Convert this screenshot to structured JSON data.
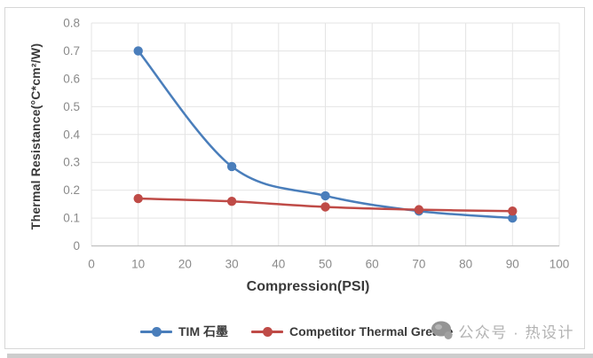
{
  "chart_data": {
    "type": "line",
    "title": "",
    "xlabel": "Compression(PSI)",
    "ylabel": "Thermal Resistance(°C*cm²/W)",
    "x": [
      10,
      30,
      50,
      70,
      90
    ],
    "series": [
      {
        "name": "TIM 石墨",
        "color": "#4a7ebb",
        "values": [
          0.7,
          0.285,
          0.18,
          0.125,
          0.1
        ]
      },
      {
        "name": "Competitor Thermal Grease",
        "color": "#bf4b47",
        "values": [
          0.17,
          0.16,
          0.14,
          0.13,
          0.125
        ]
      }
    ],
    "xlim": [
      0,
      100
    ],
    "ylim": [
      0,
      0.8
    ],
    "x_ticks": [
      0,
      10,
      20,
      30,
      40,
      50,
      60,
      70,
      80,
      90,
      100
    ],
    "y_ticks": [
      0,
      0.1,
      0.2,
      0.3,
      0.4,
      0.5,
      0.6,
      0.7,
      0.8
    ],
    "grid": true,
    "smooth": true,
    "legend_position": "bottom",
    "style": {
      "grid_color": "#e4e4e4",
      "axis_color": "#c0c0c0",
      "tick_color": "#8a8a8a"
    }
  },
  "watermark": {
    "text": "公众号 · 热设计"
  }
}
